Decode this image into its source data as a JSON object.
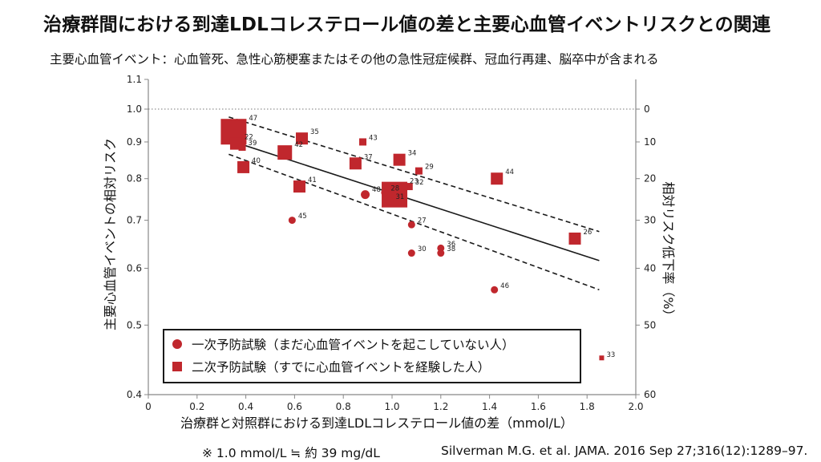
{
  "header": {
    "title": "治療群間における到達LDLコレステロール値の差と主要心血管イベントリスクとの関連",
    "subtitle": "主要心血管イベント：心血管死、急性心筋梗塞またはその他の急性冠症候群、冠血行再建、脳卒中が含まれる"
  },
  "footer": {
    "conversion": "※ 1.0 mmol/L ≒ 約 39 mg/dL",
    "citation": "Silverman M.G. et al. JAMA. 2016 Sep 27;316(12):1289–97."
  },
  "colors": {
    "marker": "#c0272d",
    "line": "#1a1a1a",
    "axis": "#888888"
  },
  "chart_data": {
    "type": "scatter",
    "title": "治療群間における到達LDLコレステロール値の差と主要心血管イベントリスクとの関連",
    "xlabel": "治療群と対照群における到達LDLコレステロール値の差（mmol/L）",
    "ylabel": "主要心血管イベントの相対リスク",
    "ylabel_right": "相対リスク低下率（%）",
    "y_scale": "log",
    "xlim": [
      0,
      2.0
    ],
    "ylim": [
      0.4,
      1.1
    ],
    "x_ticks": [
      "0",
      "0.2",
      "0.4",
      "0.6",
      "0.8",
      "1.0",
      "1.2",
      "1.4",
      "1.6",
      "1.8",
      "2.0"
    ],
    "x_tick_values": [
      0,
      0.2,
      0.4,
      0.6,
      0.8,
      1.0,
      1.2,
      1.4,
      1.6,
      1.8,
      2.0
    ],
    "y_ticks": [
      "0.4",
      "0.5",
      "0.6",
      "0.7",
      "0.8",
      "0.9",
      "1.0",
      "1.1"
    ],
    "y_tick_values": [
      0.4,
      0.5,
      0.6,
      0.7,
      0.8,
      0.9,
      1.0,
      1.1
    ],
    "y_right_ticks": [
      "0",
      "10",
      "20",
      "30",
      "40",
      "50",
      "60"
    ],
    "y_right_tick_values": [
      0,
      10,
      20,
      30,
      40,
      50,
      60
    ],
    "reference_line": 1.0,
    "legend": {
      "primary": "一次予防試験（まだ心血管イベントを起こしていない人）",
      "secondary": "二次予防試験（すでに心血管イベントを経験した人）"
    },
    "fit_line": {
      "x": [
        0.33,
        1.85
      ],
      "y": [
        0.905,
        0.615
      ]
    },
    "ci_upper": {
      "x": [
        0.33,
        1.85
      ],
      "y": [
        0.975,
        0.675
      ]
    },
    "ci_lower": {
      "x": [
        0.33,
        1.85
      ],
      "y": [
        0.865,
        0.56
      ]
    },
    "points": [
      {
        "id": "47",
        "x": 0.35,
        "y": 0.93,
        "type": "secondary",
        "size": 5
      },
      {
        "id": "22",
        "x": 0.36,
        "y": 0.895,
        "type": "secondary",
        "size": 2
      },
      {
        "id": "39",
        "x": 0.385,
        "y": 0.885,
        "type": "secondary",
        "size": 1
      },
      {
        "id": "40",
        "x": 0.39,
        "y": 0.83,
        "type": "secondary",
        "size": 2
      },
      {
        "id": "35",
        "x": 0.63,
        "y": 0.91,
        "type": "secondary",
        "size": 2
      },
      {
        "id": "42",
        "x": 0.56,
        "y": 0.87,
        "type": "secondary",
        "size": 3
      },
      {
        "id": "41",
        "x": 0.62,
        "y": 0.78,
        "type": "secondary",
        "size": 2
      },
      {
        "id": "45",
        "x": 0.59,
        "y": 0.7,
        "type": "primary",
        "size": 1
      },
      {
        "id": "43",
        "x": 0.88,
        "y": 0.9,
        "type": "secondary",
        "size": 1
      },
      {
        "id": "37",
        "x": 0.85,
        "y": 0.84,
        "type": "secondary",
        "size": 2
      },
      {
        "id": "48",
        "x": 0.89,
        "y": 0.76,
        "type": "primary",
        "size": 2
      },
      {
        "id": "34",
        "x": 1.03,
        "y": 0.85,
        "type": "secondary",
        "size": 2
      },
      {
        "id": "29",
        "x": 1.11,
        "y": 0.82,
        "type": "secondary",
        "size": 1
      },
      {
        "id": "32",
        "x": 1.07,
        "y": 0.78,
        "type": "secondary",
        "size": 1
      },
      {
        "id": "23",
        "x": 1.01,
        "y": 0.76,
        "type": "secondary",
        "size": 5
      },
      {
        "id": "28",
        "x": 0.97,
        "y": 0.765,
        "type": "primary",
        "size": 1
      },
      {
        "id": "31",
        "x": 0.99,
        "y": 0.745,
        "type": "primary",
        "size": 1
      },
      {
        "id": "27",
        "x": 1.08,
        "y": 0.69,
        "type": "primary",
        "size": 1
      },
      {
        "id": "30",
        "x": 1.08,
        "y": 0.63,
        "type": "primary",
        "size": 1
      },
      {
        "id": "36",
        "x": 1.2,
        "y": 0.64,
        "type": "primary",
        "size": 1
      },
      {
        "id": "38",
        "x": 1.2,
        "y": 0.63,
        "type": "primary",
        "size": 1
      },
      {
        "id": "44",
        "x": 1.43,
        "y": 0.8,
        "type": "secondary",
        "size": 2
      },
      {
        "id": "46",
        "x": 1.42,
        "y": 0.56,
        "type": "primary",
        "size": 1
      },
      {
        "id": "26",
        "x": 1.75,
        "y": 0.66,
        "type": "secondary",
        "size": 2
      },
      {
        "id": "33",
        "x": 1.86,
        "y": 0.45,
        "type": "secondary",
        "size": 0
      }
    ]
  }
}
